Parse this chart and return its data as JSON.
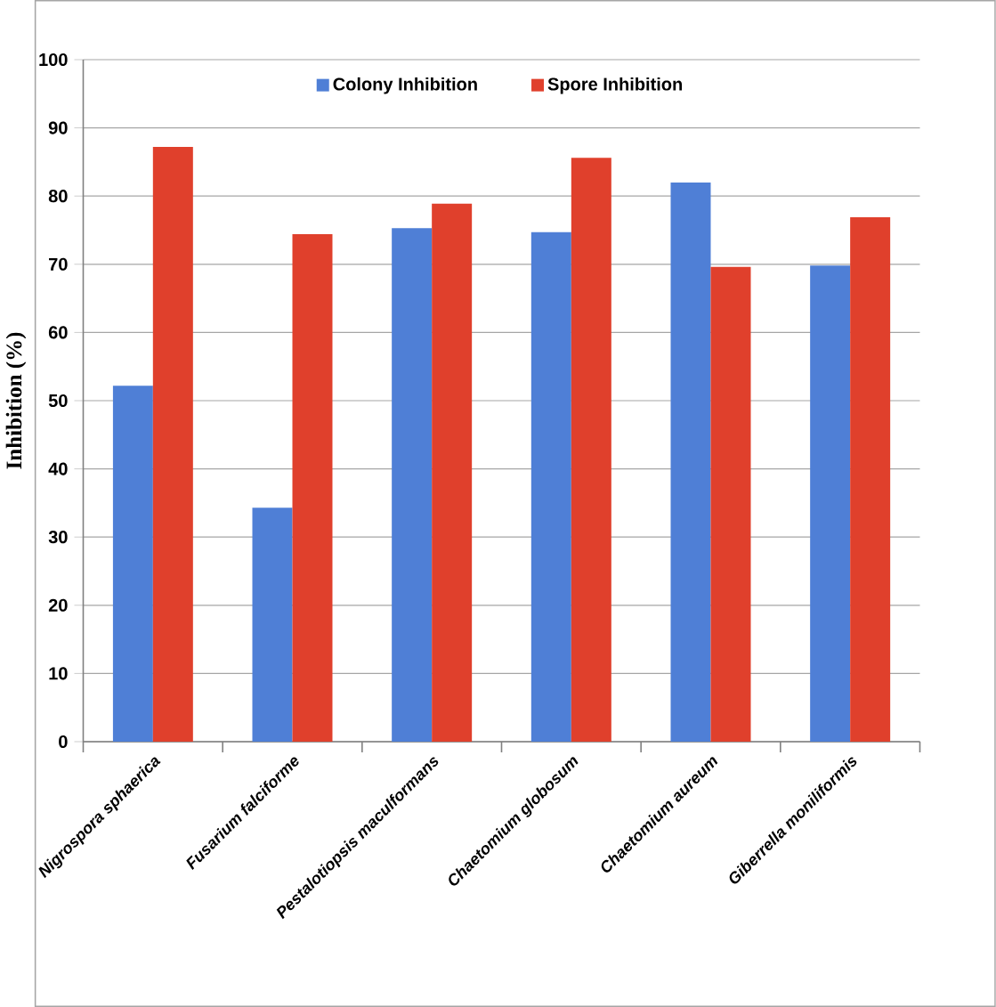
{
  "chart_data": {
    "type": "bar",
    "ylabel": "Inhibition (%)",
    "categories": [
      "Nigrospora sphaerica",
      "Fusarium falciforme",
      "Pestalotiopsis maculformans",
      "Chaetomium globosum",
      "Chaetomium aureum",
      "Giberrella moniliformis"
    ],
    "series": [
      {
        "name": "Colony Inhibition",
        "color": "#4f7fd6",
        "values": [
          52.2,
          34.3,
          75.3,
          74.7,
          82.0,
          69.8
        ]
      },
      {
        "name": "Spore Inhibition",
        "color": "#e0402c",
        "values": [
          87.2,
          74.4,
          78.9,
          85.6,
          69.6,
          76.9
        ]
      }
    ],
    "ylim": [
      0,
      100
    ],
    "yticks": [
      0,
      10,
      20,
      30,
      40,
      50,
      60,
      70,
      80,
      90,
      100
    ],
    "grid": "y",
    "legend": "top"
  }
}
